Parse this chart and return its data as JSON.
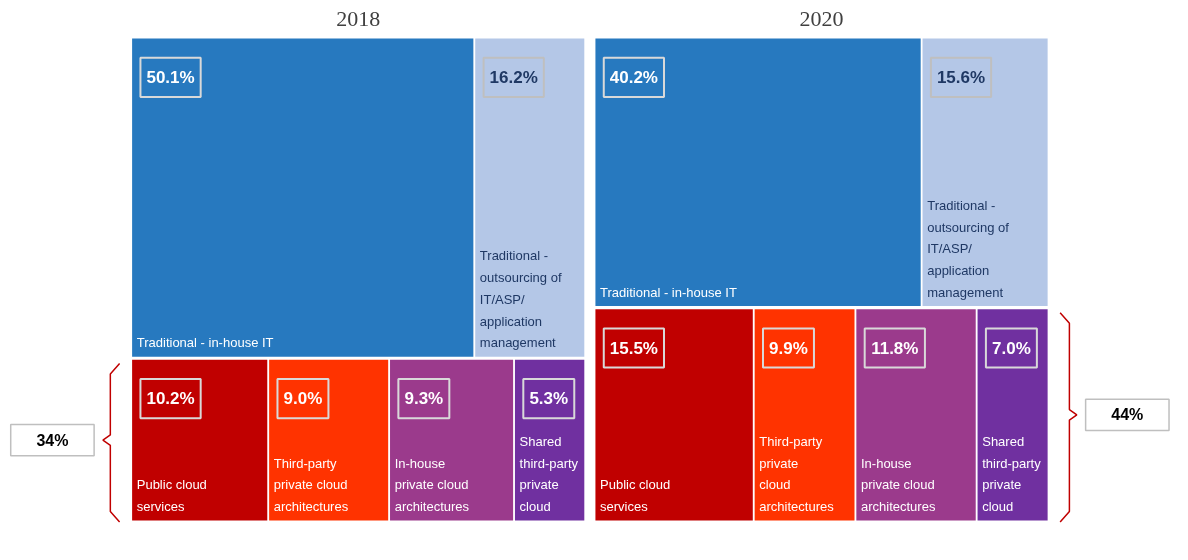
{
  "chart_data": [
    {
      "type": "other",
      "title": "2018",
      "categories": [
        "Traditional - in-house IT",
        "Traditional - outsourcing of IT/ASP/ application management",
        "Public cloud services",
        "Third-party private cloud architectures",
        "In-house private cloud architectures",
        "Shared third-party private cloud"
      ],
      "series": [
        {
          "values": [
            50.1,
            16.2,
            null,
            null,
            null,
            null
          ],
          "value_labels": [
            "50.1%",
            "16.2%",
            null,
            null,
            null,
            null
          ],
          "colors": [
            "#2779bf",
            "#b4c7e7",
            null,
            null,
            null,
            null
          ]
        },
        {
          "values": [
            null,
            null,
            10.2,
            9.0,
            9.3,
            5.3
          ],
          "value_labels": [
            null,
            null,
            "10.2%",
            "9.0%",
            "9.3%",
            "5.3%"
          ],
          "colors": [
            null,
            null,
            "#c00000",
            "#ff3300",
            "#9b3a8c",
            "#7030a0"
          ]
        }
      ],
      "annotations": [
        "34%"
      ]
    },
    {
      "type": "other",
      "title": "2020",
      "categories": [
        "Traditional - in-house IT",
        "Traditional - outsourcing of IT/ASP/ application management",
        "Public cloud services",
        "Third-party private cloud architectures",
        "In-house private cloud architectures",
        "Shared third-party private cloud"
      ],
      "series": [
        {
          "values": [
            40.2,
            15.6,
            null,
            null,
            null,
            null
          ],
          "value_labels": [
            "40.2%",
            "15.6%",
            null,
            null,
            null,
            null
          ],
          "colors": [
            "#2779bf",
            "#b4c7e7",
            null,
            null,
            null,
            null
          ]
        },
        {
          "values": [
            null,
            null,
            15.5,
            9.9,
            11.8,
            7.0
          ],
          "value_labels": [
            null,
            null,
            "15.5%",
            "9.9%",
            "11.8%",
            "7.0%"
          ],
          "colors": [
            null,
            null,
            "#c00000",
            "#ff3300",
            "#9b3a8c",
            "#7030a0"
          ]
        }
      ],
      "annotations": [
        "44%"
      ]
    }
  ]
}
